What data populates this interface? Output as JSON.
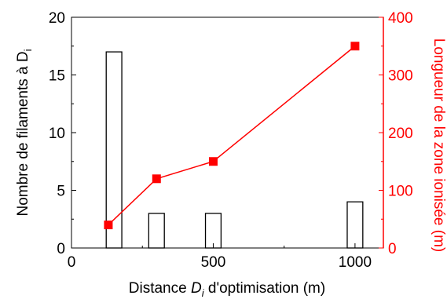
{
  "chart_data": {
    "type": "bar",
    "title": "",
    "x": {
      "label_prefix": "Distance ",
      "label_var": "D",
      "label_sub": "i",
      "label_suffix": " d'optimisation (m)",
      "range": [
        0,
        1100
      ],
      "ticks": [
        0,
        500,
        1000
      ],
      "tick_labels": [
        "0",
        "500",
        "1000"
      ]
    },
    "y_left": {
      "label_prefix": "Nombre de filaments à D",
      "label_sub": "i",
      "range": [
        0,
        20
      ],
      "ticks": [
        0,
        5,
        10,
        15,
        20
      ],
      "tick_labels": [
        "0",
        "5",
        "10",
        "15",
        "20"
      ],
      "color": "#000000"
    },
    "y_right": {
      "label": "Longueur de la zone ionisée (m)",
      "range": [
        0,
        400
      ],
      "ticks": [
        0,
        100,
        200,
        300,
        400
      ],
      "tick_labels": [
        "0",
        "100",
        "200",
        "300",
        "400"
      ],
      "color": "#ff0000"
    },
    "series": [
      {
        "kind": "bar",
        "axis": "left",
        "x": [
          150,
          300,
          500,
          1000
        ],
        "values": [
          17,
          3,
          3,
          4
        ],
        "bar_width": 55,
        "fill": "#ffffff",
        "stroke": "#000000"
      },
      {
        "kind": "line",
        "axis": "right",
        "x": [
          130,
          300,
          500,
          1000
        ],
        "values": [
          40,
          120,
          150,
          350
        ],
        "color": "#ff0000",
        "marker": "square"
      }
    ],
    "legend": "none",
    "grid": false
  }
}
